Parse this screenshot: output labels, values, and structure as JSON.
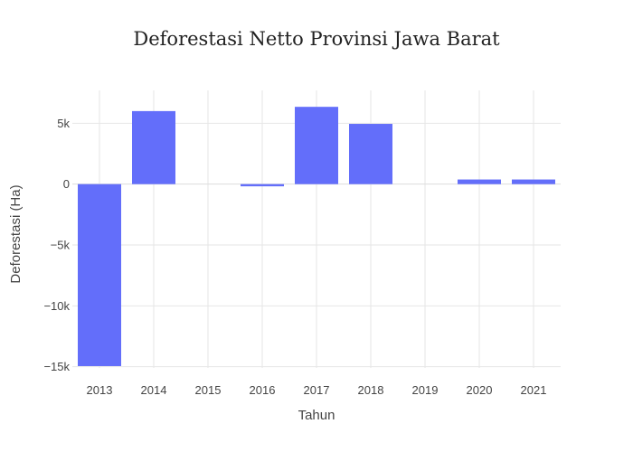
{
  "chart_data": {
    "type": "bar",
    "title": "Deforestasi Netto Provinsi Jawa Barat",
    "xlabel": "Tahun",
    "ylabel": "Deforestasi (Ha)",
    "categories": [
      "2013",
      "2014",
      "2015",
      "2016",
      "2017",
      "2018",
      "2019",
      "2020",
      "2021"
    ],
    "values": [
      -14950,
      6000,
      0,
      -180,
      6350,
      4950,
      0,
      380,
      380
    ],
    "ylim": [
      -15100,
      7700
    ],
    "yticks": [
      5000,
      0,
      -5000,
      -10000,
      -15000
    ],
    "ytick_labels": [
      "5k",
      "0",
      "−5k",
      "−10k",
      "−15k"
    ],
    "grid": true,
    "legend": false,
    "bar_color": "#636efa"
  }
}
